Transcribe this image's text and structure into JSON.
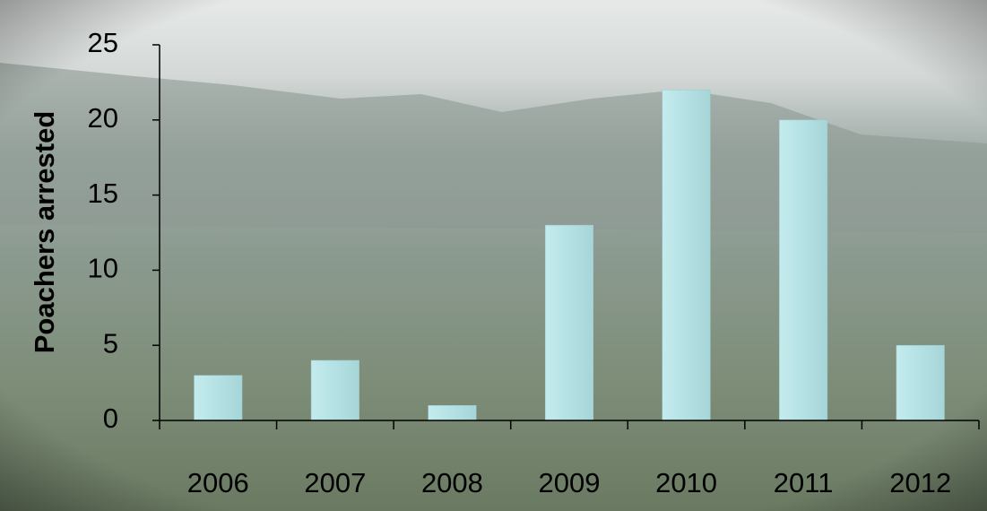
{
  "chart_data": {
    "type": "bar",
    "y_label": "Poachers arrested",
    "categories": [
      "2006",
      "2007",
      "2008",
      "2009",
      "2010",
      "2011",
      "2012"
    ],
    "values": [
      3,
      4,
      1,
      13,
      22,
      20,
      5
    ],
    "color": "#b4e1e4",
    "ylim": [
      0,
      25
    ],
    "yticks": [
      0,
      5,
      10,
      15,
      20,
      25
    ]
  }
}
